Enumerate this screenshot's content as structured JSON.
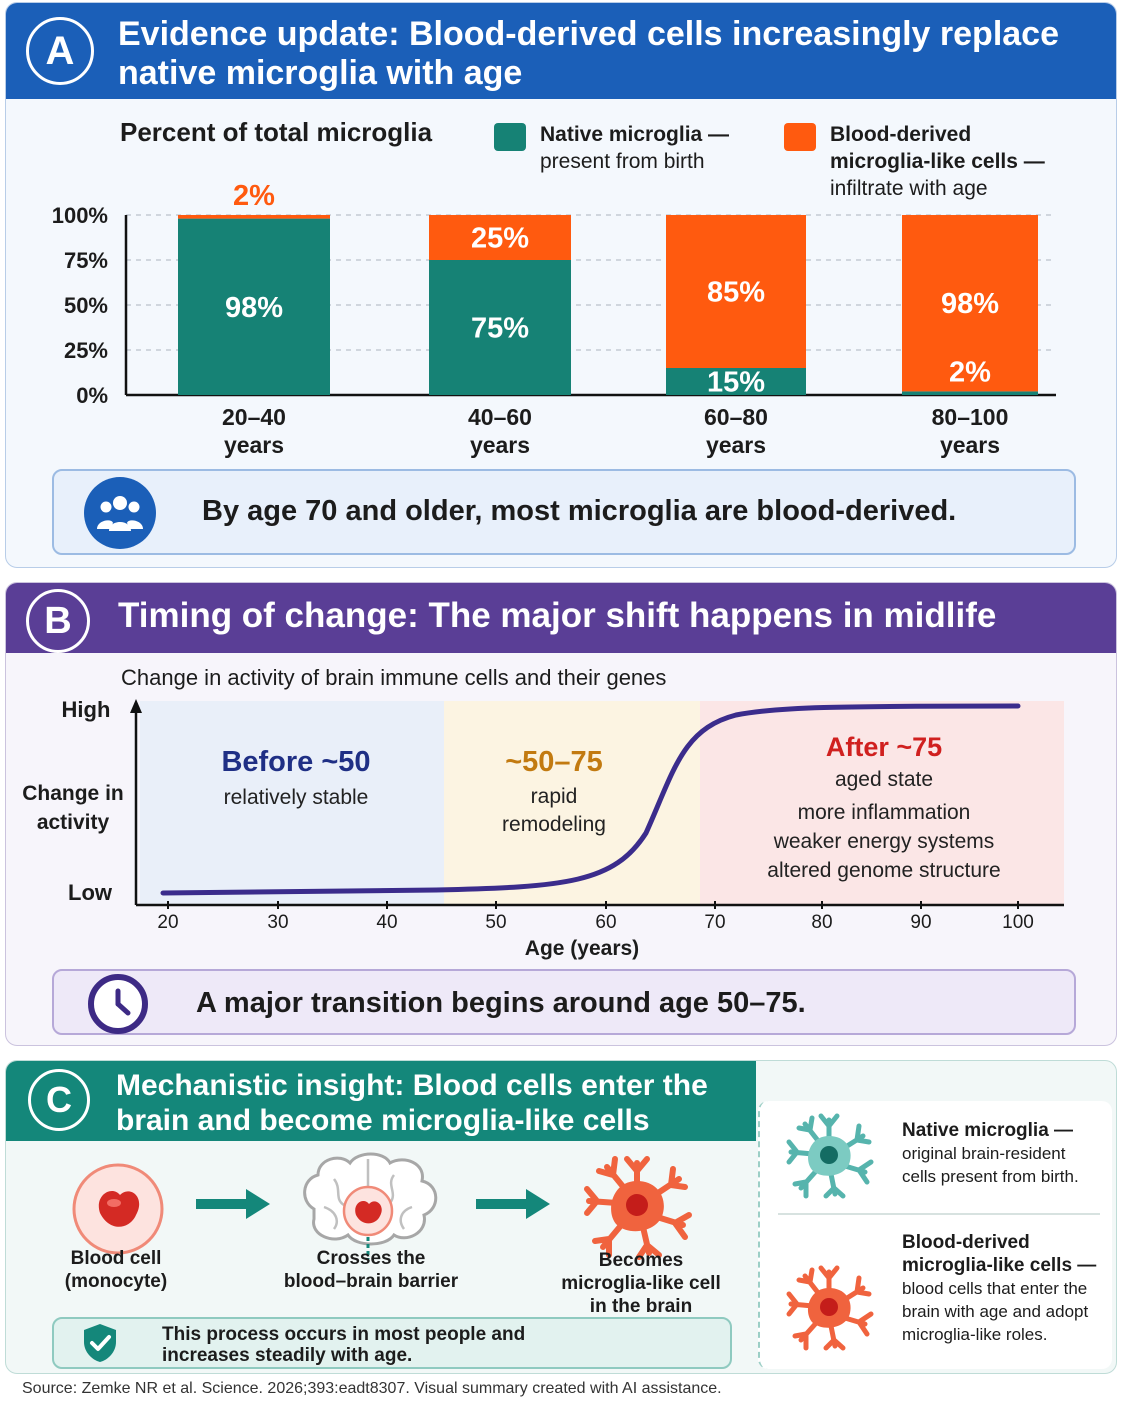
{
  "panel_a": {
    "badge": "A",
    "title": "Evidence update: Blood-derived cells increasingly replace native microglia with age",
    "chart_title": "Percent of total microglia",
    "legend": {
      "native_bold": "Native microglia —",
      "native_sub": "present from birth",
      "blood_bold_1": "Blood-derived",
      "blood_bold_2": "microglia-like cells —",
      "blood_sub": "infiltrate with age"
    },
    "callout": "By age 70 and older, most microglia are blood-derived.",
    "callout_icon": "people-group-icon"
  },
  "chart_data": {
    "type": "bar",
    "stacked": true,
    "title": "Percent of total microglia",
    "categories": [
      "20–40\nyears",
      "40–60\nyears",
      "60–80\nyears",
      "80–100\nyears"
    ],
    "y_ticks": [
      "0%",
      "25%",
      "50%",
      "75%",
      "100%"
    ],
    "ylim": [
      0,
      100
    ],
    "series": [
      {
        "name": "Native microglia",
        "values": [
          98,
          75,
          15,
          2
        ],
        "labels": [
          "98%",
          "75%",
          "15%",
          "2%"
        ],
        "color": "#168275"
      },
      {
        "name": "Blood-derived microglia-like cells",
        "values": [
          2,
          25,
          85,
          98
        ],
        "labels": [
          "2%",
          "25%",
          "85%",
          "98%"
        ],
        "color": "#ff5a0f"
      }
    ]
  },
  "panel_b": {
    "badge": "B",
    "title": "Timing of change: The major shift happens in midlife",
    "subtitle": "Change in activity of brain immune cells and their genes",
    "y_label_high": "High",
    "y_label_mid_1": "Change in",
    "y_label_mid_2": "activity",
    "y_label_low": "Low",
    "x_label": "Age (years)",
    "x_ticks": [
      "20",
      "30",
      "40",
      "50",
      "60",
      "70",
      "80",
      "90",
      "100"
    ],
    "zones": [
      {
        "title": "Before ~50",
        "lines": [
          "relatively stable"
        ],
        "color": "#1f2f85"
      },
      {
        "title": "~50–75",
        "lines": [
          "rapid",
          "remodeling"
        ],
        "color": "#c27a10"
      },
      {
        "title": "After ~75",
        "lines": [
          "aged state",
          "more inflammation",
          "weaker energy systems",
          "altered genome structure"
        ],
        "color": "#d0201f"
      }
    ],
    "callout": "A major transition begins around age 50–75.",
    "callout_icon": "clock-icon"
  },
  "panel_c": {
    "badge": "C",
    "title": "Mechanistic insight: Blood cells enter the brain and become microglia-like cells",
    "steps": [
      {
        "line1": "Blood cell",
        "line2": "(monocyte)"
      },
      {
        "line1": "Crosses the",
        "line2": "blood–brain barrier"
      },
      {
        "line1": "Becomes",
        "line2": "microglia-like cell",
        "line3": "in the brain"
      }
    ],
    "note_1": "This process occurs in most people and",
    "note_2": "increases steadily with age.",
    "note_icon": "shield-check-icon",
    "legend_native_bold": "Native microglia —",
    "legend_native_1": "original brain-resident",
    "legend_native_2": "cells present from birth.",
    "legend_blood_bold_1": "Blood-derived",
    "legend_blood_bold_2": "microglia-like cells —",
    "legend_blood_1": "blood cells that enter the",
    "legend_blood_2": "brain with age and adopt",
    "legend_blood_3": "microglia-like roles."
  },
  "source": "Source: Zemke NR et al. Science. 2026;393:eadt8307. Visual summary created with AI assistance."
}
